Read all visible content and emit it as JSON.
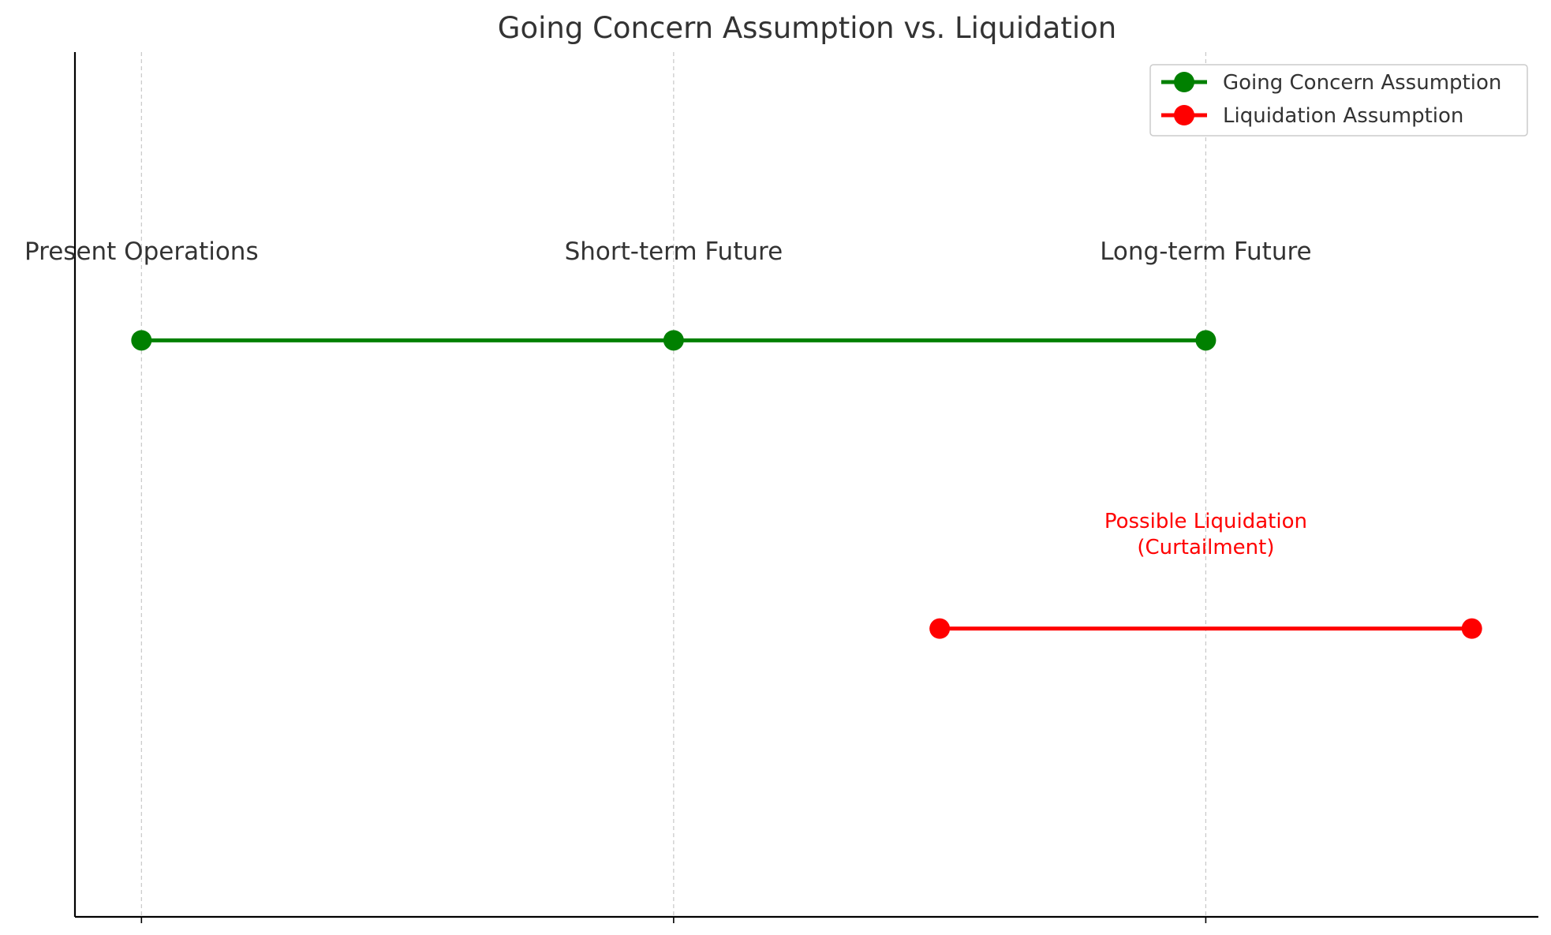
{
  "chart_data": {
    "type": "line",
    "title": "Going Concern Assumption vs. Liquidation",
    "xlabel": "",
    "ylabel": "",
    "x_ticks": [
      0,
      1,
      2
    ],
    "xlim": [
      -0.125,
      2.625
    ],
    "ylim": [
      0,
      3
    ],
    "grid": "vertical-dashed",
    "legend_position": "top-right",
    "series": [
      {
        "name": "Going Concern Assumption",
        "color": "#008000",
        "points": [
          {
            "x": 0,
            "y": 2
          },
          {
            "x": 1,
            "y": 2
          },
          {
            "x": 2,
            "y": 2
          }
        ]
      },
      {
        "name": "Liquidation Assumption",
        "color": "#ff0000",
        "points": [
          {
            "x": 1.5,
            "y": 1
          },
          {
            "x": 2.5,
            "y": 1
          }
        ]
      }
    ],
    "point_labels": [
      {
        "text": "Present Operations",
        "x": 0,
        "y": 2.28
      },
      {
        "text": "Short-term Future",
        "x": 1,
        "y": 2.28
      },
      {
        "text": "Long-term Future",
        "x": 2,
        "y": 2.28
      }
    ],
    "annotations": [
      {
        "lines": [
          "Possible Liquidation",
          "(Curtailment)"
        ],
        "x": 2,
        "y": 1.35,
        "color": "#ff0000"
      }
    ]
  }
}
